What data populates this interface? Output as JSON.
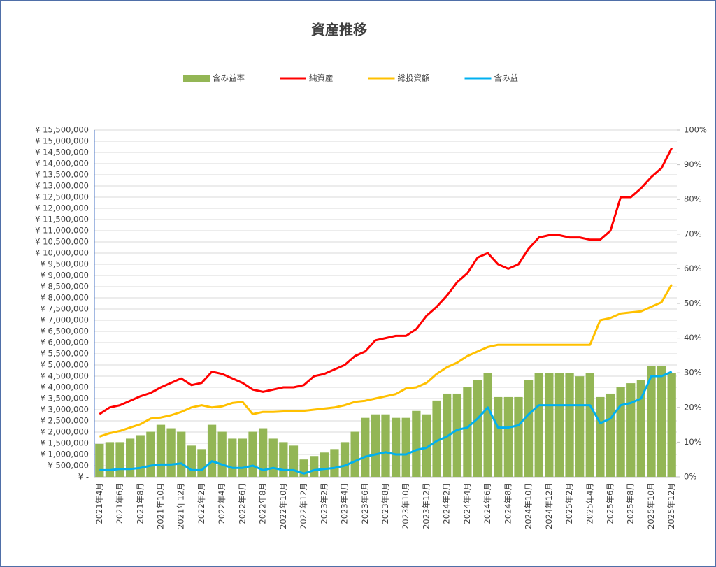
{
  "chart_data": {
    "type": "combo",
    "title": "資産推移",
    "categories": [
      "2021年4月",
      null,
      "2021年6月",
      null,
      "2021年8月",
      null,
      "2021年10月",
      null,
      "2021年12月",
      null,
      "2022年2月",
      null,
      "2022年4月",
      null,
      "2022年6月",
      null,
      "2022年8月",
      null,
      "2022年10月",
      null,
      "2022年12月",
      null,
      "2023年2月",
      null,
      "2023年4月",
      null,
      "2023年6月",
      null,
      "2023年8月",
      null,
      "2023年10月",
      null,
      "2023年12月",
      null,
      "2024年2月",
      null,
      "2024年4月",
      null,
      "2024年6月",
      null,
      "2024年8月",
      null,
      "2024年10月",
      null,
      "2024年12月",
      null,
      "2025年2月",
      null,
      "2025年4月",
      null,
      "2025年6月",
      null,
      "2025年8月",
      null,
      "2025年10月",
      null,
      "2025年12月"
    ],
    "series": [
      {
        "name": "含み益率",
        "kind": "bar",
        "axis": "y2",
        "color": "#93b655",
        "values": [
          9.5,
          10,
          10,
          11,
          12,
          13,
          15,
          14,
          13,
          9,
          8,
          15,
          13,
          11,
          11,
          13,
          14,
          11,
          10,
          9,
          5,
          6,
          7,
          8,
          10,
          13,
          17,
          18,
          18,
          17,
          17,
          19,
          18,
          22,
          24,
          24,
          26,
          28,
          30,
          23,
          23,
          23,
          28,
          30,
          30,
          30,
          30,
          29,
          30,
          23,
          24,
          26,
          27,
          28,
          32,
          32,
          30
        ]
      },
      {
        "name": "純資産",
        "kind": "line",
        "color": "#ff0000",
        "values": [
          2800000,
          3100000,
          3200000,
          3400000,
          3600000,
          3750000,
          4000000,
          4200000,
          4400000,
          4100000,
          4200000,
          4700000,
          4600000,
          4400000,
          4200000,
          3900000,
          3800000,
          3900000,
          4000000,
          4000000,
          4100000,
          4500000,
          4600000,
          4800000,
          5000000,
          5400000,
          5600000,
          6100000,
          6200000,
          6300000,
          6300000,
          6600000,
          7200000,
          7600000,
          8100000,
          8700000,
          9100000,
          9800000,
          10000000,
          9500000,
          9300000,
          9500000,
          10200000,
          10700000,
          10800000,
          10800000,
          10700000,
          10700000,
          10600000,
          10600000,
          11000000,
          12500000,
          12500000,
          12900000,
          13400000,
          13800000,
          14700000
        ]
      },
      {
        "name": "総投資額",
        "kind": "line",
        "color": "#ffc000",
        "values": [
          1800000,
          1950000,
          2050000,
          2200000,
          2350000,
          2600000,
          2650000,
          2750000,
          2900000,
          3100000,
          3200000,
          3100000,
          3150000,
          3300000,
          3350000,
          2800000,
          2900000,
          2900000,
          2920000,
          2930000,
          2950000,
          3000000,
          3050000,
          3100000,
          3200000,
          3350000,
          3400000,
          3500000,
          3600000,
          3700000,
          3950000,
          4000000,
          4200000,
          4600000,
          4900000,
          5100000,
          5400000,
          5600000,
          5800000,
          5900000,
          5900000,
          5900000,
          5900000,
          5900000,
          5900000,
          5900000,
          5900000,
          5900000,
          5900000,
          7000000,
          7100000,
          7300000,
          7350000,
          7400000,
          7600000,
          7800000,
          8600000
        ]
      },
      {
        "name": "含み益",
        "kind": "line",
        "color": "#00b0f0",
        "values": [
          300000,
          300000,
          350000,
          350000,
          400000,
          500000,
          550000,
          550000,
          600000,
          300000,
          300000,
          700000,
          550000,
          400000,
          400000,
          500000,
          300000,
          400000,
          300000,
          300000,
          150000,
          300000,
          350000,
          400000,
          500000,
          700000,
          900000,
          1000000,
          1100000,
          1000000,
          1000000,
          1200000,
          1300000,
          1600000,
          1800000,
          2100000,
          2200000,
          2600000,
          3100000,
          2200000,
          2200000,
          2300000,
          2800000,
          3200000,
          3200000,
          3200000,
          3200000,
          3200000,
          3200000,
          2400000,
          2600000,
          3200000,
          3300000,
          3500000,
          4500000,
          4500000,
          4700000
        ]
      }
    ],
    "ylim": [
      0,
      15500000
    ],
    "yticks": [
      {
        "value": 0,
        "label": "¥ -"
      },
      {
        "value": 500000,
        "label": "¥ 500,000"
      },
      {
        "value": 1000000,
        "label": "¥ 1,000,000"
      },
      {
        "value": 1500000,
        "label": "¥ 1,500,000"
      },
      {
        "value": 2000000,
        "label": "¥ 2,000,000"
      },
      {
        "value": 2500000,
        "label": "¥ 2,500,000"
      },
      {
        "value": 3000000,
        "label": "¥ 3,000,000"
      },
      {
        "value": 3500000,
        "label": "¥ 3,500,000"
      },
      {
        "value": 4000000,
        "label": "¥ 4,000,000"
      },
      {
        "value": 4500000,
        "label": "¥ 4,500,000"
      },
      {
        "value": 5000000,
        "label": "¥ 5,000,000"
      },
      {
        "value": 5500000,
        "label": "¥ 5,500,000"
      },
      {
        "value": 6000000,
        "label": "¥ 6,000,000"
      },
      {
        "value": 6500000,
        "label": "¥ 6,500,000"
      },
      {
        "value": 7000000,
        "label": "¥ 7,000,000"
      },
      {
        "value": 7500000,
        "label": "¥ 7,500,000"
      },
      {
        "value": 8000000,
        "label": "¥ 8,000,000"
      },
      {
        "value": 8500000,
        "label": "¥ 8,500,000"
      },
      {
        "value": 9000000,
        "label": "¥ 9,000,000"
      },
      {
        "value": 9500000,
        "label": "¥ 9,500,000"
      },
      {
        "value": 10000000,
        "label": "¥ 10,000,000"
      },
      {
        "value": 10500000,
        "label": "¥ 10,500,000"
      },
      {
        "value": 11000000,
        "label": "¥ 11,000,000"
      },
      {
        "value": 11500000,
        "label": "¥ 11,500,000"
      },
      {
        "value": 12000000,
        "label": "¥ 12,000,000"
      },
      {
        "value": 12500000,
        "label": "¥ 12,500,000"
      },
      {
        "value": 13000000,
        "label": "¥ 13,000,000"
      },
      {
        "value": 13500000,
        "label": "¥ 13,500,000"
      },
      {
        "value": 14000000,
        "label": "¥ 14,000,000"
      },
      {
        "value": 14500000,
        "label": "¥ 14,500,000"
      },
      {
        "value": 15000000,
        "label": "¥ 15,000,000"
      },
      {
        "value": 15500000,
        "label": "¥ 15,500,000"
      }
    ],
    "y2lim": [
      0,
      100
    ],
    "y2ticks": [
      {
        "value": 0,
        "label": "0%"
      },
      {
        "value": 10,
        "label": "10%"
      },
      {
        "value": 20,
        "label": "20%"
      },
      {
        "value": 30,
        "label": "30%"
      },
      {
        "value": 40,
        "label": "40%"
      },
      {
        "value": 50,
        "label": "50%"
      },
      {
        "value": 60,
        "label": "60%"
      },
      {
        "value": 70,
        "label": "70%"
      },
      {
        "value": 80,
        "label": "80%"
      },
      {
        "value": 90,
        "label": "90%"
      },
      {
        "value": 100,
        "label": "100%"
      }
    ],
    "grid": true,
    "legend": "top"
  }
}
